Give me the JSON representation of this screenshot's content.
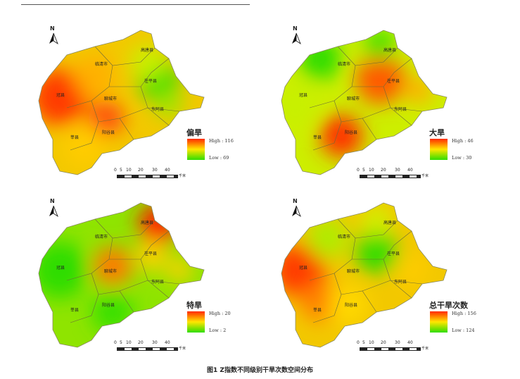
{
  "north_label": "N",
  "scale": {
    "ticks": [
      "0",
      "5",
      "10",
      "20",
      "30",
      "40"
    ],
    "unit": "千米"
  },
  "counties": {
    "linqing": "临清市",
    "gaotang": "高唐县",
    "chiping": "茌平县",
    "guanxian": "冠县",
    "liaocheng": "聊城市",
    "donge": "东阿县",
    "shenxian": "莘县",
    "yanggu": "阳谷县"
  },
  "panels": [
    {
      "legend_title": "偏旱",
      "high": "High : 116",
      "low": "Low : 69"
    },
    {
      "legend_title": "大旱",
      "high": "High : 46",
      "low": "Low : 30"
    },
    {
      "legend_title": "特旱",
      "high": "High : 20",
      "low": "Low : 2"
    },
    {
      "legend_title": "总干旱次数",
      "high": "High : 156",
      "low": "Low : 124"
    }
  ],
  "caption": "图1 Z指数不同级别干旱次数空间分布",
  "colors": {
    "high": "#ff2a00",
    "mid": "#ffe600",
    "low": "#2fdd00"
  }
}
